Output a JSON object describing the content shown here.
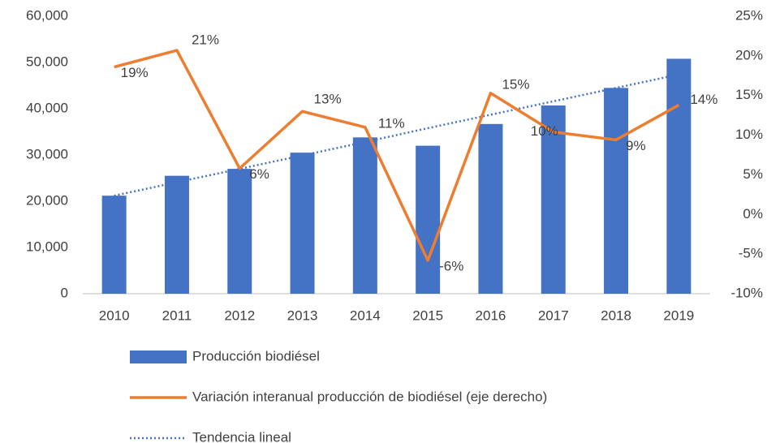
{
  "chart_data": {
    "type": "bar",
    "categories": [
      "2010",
      "2011",
      "2012",
      "2013",
      "2014",
      "2015",
      "2016",
      "2017",
      "2018",
      "2019"
    ],
    "series": [
      {
        "name": "Producción biodiésel",
        "type": "bar",
        "color": "#4472c4",
        "values": [
          21200,
          25500,
          27000,
          30500,
          33800,
          32000,
          36700,
          40700,
          44500,
          50800
        ]
      },
      {
        "name": "Variación interanual producción de biodiésel (eje derecho)",
        "type": "line",
        "axis": "y2",
        "color": "#ed7d31",
        "values": [
          18.6,
          20.7,
          5.8,
          13.0,
          11.0,
          -5.8,
          15.3,
          10.4,
          9.4,
          13.8
        ],
        "value_labels": [
          "19%",
          "21%",
          "6%",
          "13%",
          "11%",
          "-6%",
          "15%",
          "10%",
          "9%",
          "14%"
        ]
      },
      {
        "name": "Tendencia lineal",
        "type": "trend",
        "color": "#4472c4",
        "values": [
          21200,
          24100,
          27000,
          29900,
          32800,
          35800,
          38700,
          41600,
          44500,
          47400
        ]
      }
    ],
    "ylim": [
      0,
      60000
    ],
    "yticks": [
      0,
      {
        "value": 10000,
        "label": "10,000"
      },
      {
        "value": 20000,
        "label": "20,000"
      },
      {
        "value": 30000,
        "label": "30,000"
      },
      {
        "value": 40000,
        "label": "40,000"
      },
      {
        "value": 50000,
        "label": "50,000"
      },
      {
        "value": 60000,
        "label": "60,000"
      }
    ],
    "y2lim": [
      -10,
      25
    ],
    "y2ticks": [
      {
        "value": -10,
        "label": "-10%"
      },
      {
        "value": -5,
        "label": "-5%"
      },
      {
        "value": 0,
        "label": "0%"
      },
      {
        "value": 5,
        "label": "5%"
      },
      {
        "value": 10,
        "label": "10%"
      },
      {
        "value": 15,
        "label": "15%"
      },
      {
        "value": 20,
        "label": "20%"
      },
      {
        "value": 25,
        "label": "25%"
      }
    ],
    "grid": false,
    "legend": "bottom"
  }
}
